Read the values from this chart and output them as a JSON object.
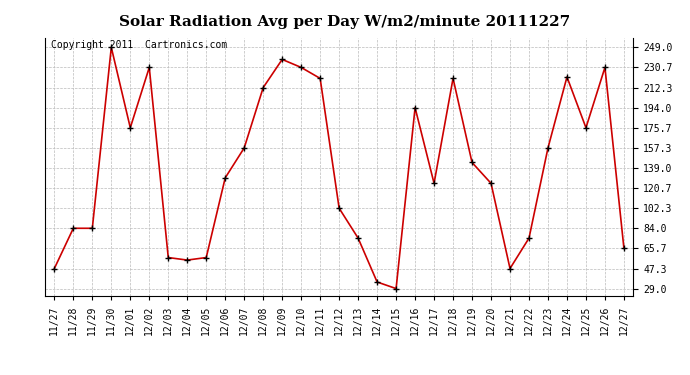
{
  "title": "Solar Radiation Avg per Day W/m2/minute 20111227",
  "copyright": "Copyright 2011  Cartronics.com",
  "x_labels": [
    "11/27",
    "11/28",
    "11/29",
    "11/30",
    "12/01",
    "12/02",
    "12/03",
    "12/04",
    "12/05",
    "12/06",
    "12/07",
    "12/08",
    "12/09",
    "12/10",
    "12/11",
    "12/12",
    "12/13",
    "12/14",
    "12/15",
    "12/16",
    "12/17",
    "12/18",
    "12/19",
    "12/20",
    "12/21",
    "12/22",
    "12/23",
    "12/24",
    "12/25",
    "12/26",
    "12/27"
  ],
  "y_values": [
    47.3,
    84.0,
    84.0,
    249.0,
    175.7,
    230.7,
    57.3,
    55.0,
    57.3,
    130.0,
    157.3,
    212.3,
    238.0,
    230.7,
    220.7,
    102.3,
    75.0,
    35.0,
    29.0,
    194.0,
    125.0,
    220.7,
    144.0,
    125.0,
    47.3,
    75.0,
    157.3,
    222.0,
    175.7,
    230.7,
    65.7
  ],
  "line_color": "#cc0000",
  "marker": "+",
  "marker_color": "#000000",
  "bg_color": "#ffffff",
  "grid_color": "#bbbbbb",
  "yticks": [
    29.0,
    47.3,
    65.7,
    84.0,
    102.3,
    120.7,
    139.0,
    157.3,
    175.7,
    194.0,
    212.3,
    230.7,
    249.0
  ],
  "ylim": [
    22,
    258
  ],
  "title_fontsize": 11,
  "tick_fontsize": 7,
  "copyright_fontsize": 7
}
